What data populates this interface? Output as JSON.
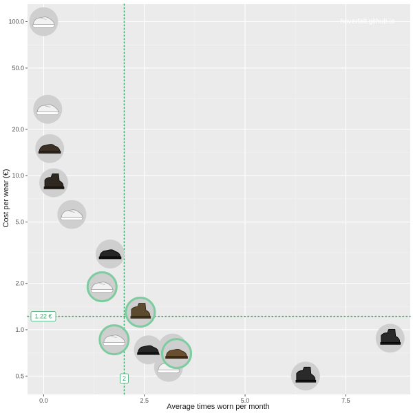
{
  "chart_data": {
    "type": "scatter",
    "title": "",
    "xlabel": "Average times worn per month",
    "ylabel": "Cost per wear (€)",
    "watermark": "hoverfalt.github.io",
    "x_scale": "linear",
    "y_scale": "log",
    "xlim": [
      -0.4,
      9.1
    ],
    "ylim": [
      0.38,
      130
    ],
    "x_ticks": [
      0,
      2.5,
      5.0,
      7.5
    ],
    "x_tick_labels": [
      "0.0",
      "2.5",
      "5.0",
      "7.5"
    ],
    "y_ticks": [
      0.5,
      1.0,
      2.0,
      5.0,
      10.0,
      20.0,
      50.0,
      100.0
    ],
    "y_tick_labels": [
      "0.5",
      "1.0",
      "2.0",
      "5.0",
      "10.0",
      "20.0",
      "50.0",
      "100.0"
    ],
    "grid": true,
    "background_color": "#ebebeb",
    "highlight_color": "#7dcca0",
    "reference_color": "#35a86b",
    "reference_lines": {
      "x": 2,
      "x_label": "2",
      "y": 1.22,
      "y_label": "1.22 €"
    },
    "points": [
      {
        "item": "white-sneaker",
        "x": 0.0,
        "y": 100,
        "highlight": false
      },
      {
        "item": "white-sneaker",
        "x": 0.1,
        "y": 27,
        "highlight": false
      },
      {
        "item": "dark-brown-shoe",
        "x": 0.15,
        "y": 15,
        "highlight": false
      },
      {
        "item": "dark-brown-boot",
        "x": 0.25,
        "y": 9,
        "highlight": false
      },
      {
        "item": "white-sneaker",
        "x": 0.7,
        "y": 5.6,
        "highlight": false
      },
      {
        "item": "black-shoe",
        "x": 1.65,
        "y": 3.1,
        "highlight": false
      },
      {
        "item": "white-sneaker",
        "x": 1.45,
        "y": 1.9,
        "highlight": true
      },
      {
        "item": "brown-boot",
        "x": 2.4,
        "y": 1.3,
        "highlight": true
      },
      {
        "item": "white-sneaker",
        "x": 1.75,
        "y": 0.86,
        "highlight": true
      },
      {
        "item": "brown-shoe",
        "x": 3.3,
        "y": 0.7,
        "highlight": true
      },
      {
        "item": "black-shoe",
        "x": 2.6,
        "y": 0.74,
        "highlight": false
      },
      {
        "item": "brown-shoe",
        "x": 3.2,
        "y": 0.76,
        "highlight": false
      },
      {
        "item": "white-sneaker",
        "x": 3.1,
        "y": 0.57,
        "highlight": false
      },
      {
        "item": "black-boot",
        "x": 6.5,
        "y": 0.5,
        "highlight": false
      },
      {
        "item": "black-boot",
        "x": 8.6,
        "y": 0.88,
        "highlight": false
      }
    ]
  }
}
